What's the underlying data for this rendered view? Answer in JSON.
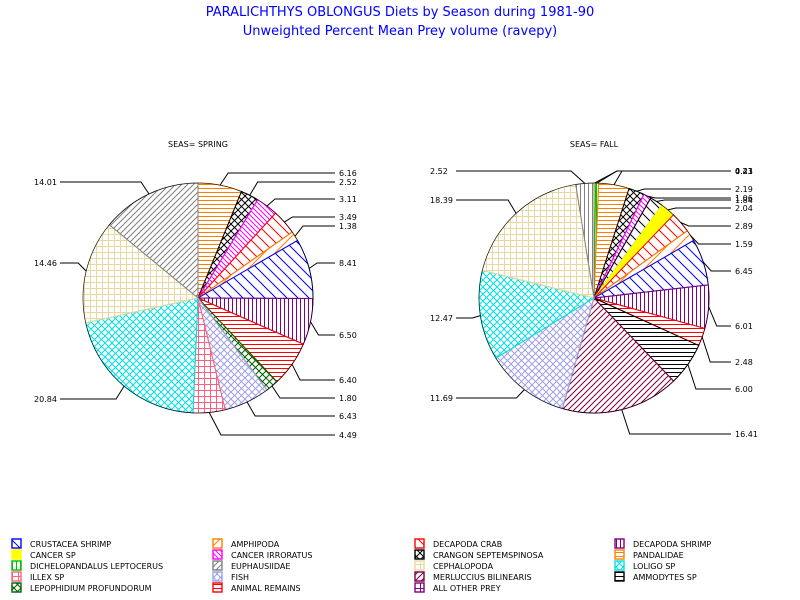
{
  "title": "PARALICHTHYS OBLONGUS Diets by Season during 1981-90",
  "subtitle": "Unweighted Percent Mean Prey volume (ravepy)",
  "chart_data": [
    {
      "type": "pie",
      "title": "SEAS= SPRING",
      "slices": [
        {
          "category": "PANDALIDAE",
          "value": 6.16
        },
        {
          "category": "CRANGON SEPTEMSPINOSA",
          "value": 2.52
        },
        {
          "category": "CANCER IRRORATUS",
          "value": 3.11
        },
        {
          "category": "DECAPODA CRAB",
          "value": 3.49
        },
        {
          "category": "AMPHIPODA",
          "value": 1.38
        },
        {
          "category": "CRUSTACEA SHRIMP",
          "value": 8.41
        },
        {
          "category": "DECAPODA SHRIMP",
          "value": 6.5
        },
        {
          "category": "ANIMAL REMAINS",
          "value": 6.4
        },
        {
          "category": "LEPOPHIDIUM PROFUNDORUM",
          "value": 1.8
        },
        {
          "category": "FISH",
          "value": 6.43
        },
        {
          "category": "ILLEX SP",
          "value": 4.49
        },
        {
          "category": "LOLIGO SP",
          "value": 20.84
        },
        {
          "category": "CEPHALOPODA",
          "value": 14.46
        },
        {
          "category": "EUPHAUSIIDAE",
          "value": 14.01
        }
      ]
    },
    {
      "type": "pie",
      "title": "SEAS= FALL",
      "slices": [
        {
          "category": "CANCER SP",
          "value": 0.23
        },
        {
          "category": "DICHELOPANDALUS LEPTOCERUS",
          "value": 0.41
        },
        {
          "category": "PANDALIDAE",
          "value": 4.23
        },
        {
          "category": "CRANGON SEPTEMSPINOSA",
          "value": 2.19
        },
        {
          "category": "CANCER IRRORATUS",
          "value": 1.06
        },
        {
          "category": "AMPHIPODA",
          "value": 1.84
        },
        {
          "category": "CANCER SP",
          "value": 2.04
        },
        {
          "category": "DECAPODA CRAB",
          "value": 2.89
        },
        {
          "category": "AMPHIPODA",
          "value": 1.59
        },
        {
          "category": "CRUSTACEA SHRIMP",
          "value": 6.45
        },
        {
          "category": "DECAPODA SHRIMP",
          "value": 6.01
        },
        {
          "category": "ANIMAL REMAINS",
          "value": 2.48
        },
        {
          "category": "AMMODYTES SP",
          "value": 6.0
        },
        {
          "category": "MERLUCCIUS BILINEARIS",
          "value": 16.41
        },
        {
          "category": "FISH",
          "value": 11.69
        },
        {
          "category": "LOLIGO SP",
          "value": 12.47
        },
        {
          "category": "CEPHALOPODA",
          "value": 18.39
        },
        {
          "category": "EUPHAUSIIDAE",
          "value": 2.52
        }
      ]
    }
  ],
  "legend": [
    {
      "label": "CRUSTACEA SHRIMP",
      "color": "#0000ff",
      "pattern": "diag-left-sparse"
    },
    {
      "label": "AMPHIPODA",
      "color": "#ff8000",
      "pattern": "diag-right-sparse"
    },
    {
      "label": "DECAPODA CRAB",
      "color": "#ff0000",
      "pattern": "diag-left-sparse"
    },
    {
      "label": "DECAPODA SHRIMP",
      "color": "#800080",
      "pattern": "vertical"
    },
    {
      "label": "CANCER SP",
      "color": "#ffff00",
      "pattern": "solid"
    },
    {
      "label": "CANCER IRRORATUS",
      "color": "#ff00ff",
      "pattern": "diag-left-dense"
    },
    {
      "label": "CRANGON SEPTEMSPINOSA",
      "color": "#000000",
      "pattern": "diag-cross"
    },
    {
      "label": "PANDALIDAE",
      "color": "#ff8000",
      "pattern": "horizontal"
    },
    {
      "label": "DICHELOPANDALUS LEPTOCERUS",
      "color": "#00c000",
      "pattern": "vertical"
    },
    {
      "label": "EUPHAUSIIDAE",
      "color": "#808080",
      "pattern": "diag-right"
    },
    {
      "label": "CEPHALOPODA",
      "color": "#e8d8a0",
      "pattern": "grid"
    },
    {
      "label": "LOLIGO SP",
      "color": "#00e0e0",
      "pattern": "diag-cross"
    },
    {
      "label": "ILLEX SP",
      "color": "#ff6080",
      "pattern": "grid"
    },
    {
      "label": "FISH",
      "color": "#a0a0e0",
      "pattern": "diag-cross"
    },
    {
      "label": "MERLUCCIUS BILINEARIS",
      "color": "#800040",
      "pattern": "diag-right"
    },
    {
      "label": "AMMODYTES SP",
      "color": "#000000",
      "pattern": "horizontal"
    },
    {
      "label": "LEPOPHIDIUM PROFUNDORUM",
      "color": "#006000",
      "pattern": "diag-cross"
    },
    {
      "label": "ANIMAL REMAINS",
      "color": "#ff0000",
      "pattern": "horizontal"
    },
    {
      "label": "ALL OTHER PREY",
      "color": "#800080",
      "pattern": "grid"
    }
  ],
  "slice_styles": {
    "SPRING": [
      {
        "color": "#ff8000",
        "pattern": "horizontal"
      },
      {
        "color": "#000000",
        "pattern": "diag-cross"
      },
      {
        "color": "#ff00ff",
        "pattern": "diag-left-dense"
      },
      {
        "color": "#ff0000",
        "pattern": "diag-left-sparse"
      },
      {
        "color": "#ff8000",
        "pattern": "diag-right-sparse"
      },
      {
        "color": "#0000ff",
        "pattern": "diag-left-sparse"
      },
      {
        "color": "#800080",
        "pattern": "vertical"
      },
      {
        "color": "#ff0000",
        "pattern": "horizontal"
      },
      {
        "color": "#006000",
        "pattern": "diag-cross"
      },
      {
        "color": "#a0a0e0",
        "pattern": "diag-cross"
      },
      {
        "color": "#ff6080",
        "pattern": "grid"
      },
      {
        "color": "#00e0e0",
        "pattern": "diag-cross"
      },
      {
        "color": "#e8d8a0",
        "pattern": "grid"
      },
      {
        "color": "#808080",
        "pattern": "diag-right"
      }
    ],
    "FALL": [
      {
        "color": "#ffff00",
        "pattern": "solid"
      },
      {
        "color": "#00c000",
        "pattern": "vertical"
      },
      {
        "color": "#ff8000",
        "pattern": "horizontal"
      },
      {
        "color": "#000000",
        "pattern": "diag-cross"
      },
      {
        "color": "#ff00ff",
        "pattern": "diag-left-dense"
      },
      {
        "color": "#000000",
        "pattern": "diag-left-sparse"
      },
      {
        "color": "#ffff00",
        "pattern": "solid"
      },
      {
        "color": "#ff0000",
        "pattern": "diag-left-sparse"
      },
      {
        "color": "#ff8000",
        "pattern": "diag-right-sparse"
      },
      {
        "color": "#0000ff",
        "pattern": "diag-left-sparse"
      },
      {
        "color": "#800080",
        "pattern": "vertical"
      },
      {
        "color": "#ff0000",
        "pattern": "horizontal"
      },
      {
        "color": "#000000",
        "pattern": "horizontal"
      },
      {
        "color": "#800040",
        "pattern": "diag-right"
      },
      {
        "color": "#a0a0e0",
        "pattern": "diag-cross"
      },
      {
        "color": "#00e0e0",
        "pattern": "diag-cross"
      },
      {
        "color": "#e8d8a0",
        "pattern": "grid"
      },
      {
        "color": "#808080",
        "pattern": "vertical"
      }
    ]
  }
}
